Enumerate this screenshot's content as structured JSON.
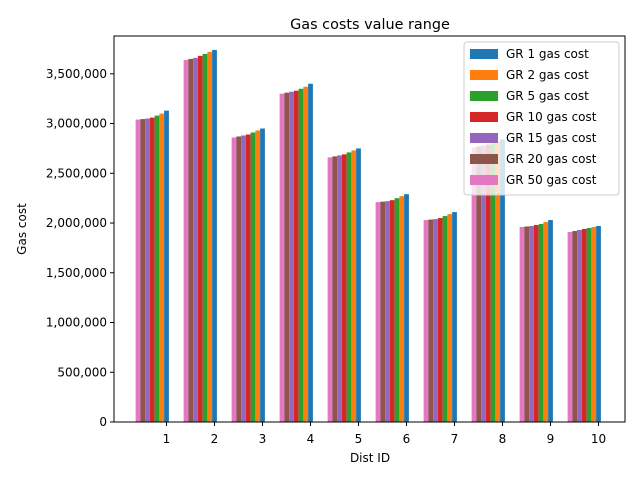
{
  "chart_data": {
    "type": "bar",
    "title": "Gas costs value range",
    "xlabel": "Dist ID",
    "ylabel": "Gas cost",
    "categories": [
      "1",
      "2",
      "3",
      "4",
      "5",
      "6",
      "7",
      "8",
      "9",
      "10"
    ],
    "ylim": [
      0,
      3880000
    ],
    "yticks": [
      0,
      500000,
      1000000,
      1500000,
      2000000,
      2500000,
      3000000,
      3500000
    ],
    "ytick_labels": [
      "0",
      "500,000",
      "1,000,000",
      "1,500,000",
      "2,000,000",
      "2,500,000",
      "3,000,000",
      "3,500,000"
    ],
    "grid": false,
    "legend_position": "top-right",
    "series": [
      {
        "name": "GR 1 gas cost",
        "color": "#1f77b4",
        "values": [
          3130000,
          3740000,
          2950000,
          3400000,
          2750000,
          2290000,
          2110000,
          2840000,
          2030000,
          1970000
        ]
      },
      {
        "name": "GR 2 gas cost",
        "color": "#ff7f0e",
        "values": [
          3100000,
          3720000,
          2930000,
          3370000,
          2730000,
          2270000,
          2090000,
          2820000,
          2010000,
          1960000
        ]
      },
      {
        "name": "GR 5 gas cost",
        "color": "#2ca02c",
        "values": [
          3080000,
          3700000,
          2910000,
          3350000,
          2710000,
          2250000,
          2070000,
          2800000,
          1990000,
          1950000
        ]
      },
      {
        "name": "GR 10 gas cost",
        "color": "#d62728",
        "values": [
          3060000,
          3680000,
          2890000,
          3330000,
          2690000,
          2230000,
          2050000,
          2790000,
          1980000,
          1940000
        ]
      },
      {
        "name": "GR 15 gas cost",
        "color": "#9467bd",
        "values": [
          3050000,
          3660000,
          2880000,
          3320000,
          2680000,
          2220000,
          2040000,
          2780000,
          1970000,
          1930000
        ]
      },
      {
        "name": "GR 20 gas cost",
        "color": "#8c564b",
        "values": [
          3045000,
          3650000,
          2870000,
          3310000,
          2670000,
          2215000,
          2035000,
          2770000,
          1965000,
          1920000
        ]
      },
      {
        "name": "GR 50 gas cost",
        "color": "#e377c2",
        "values": [
          3040000,
          3640000,
          2860000,
          3300000,
          2660000,
          2210000,
          2030000,
          2760000,
          1960000,
          1910000
        ]
      }
    ]
  }
}
